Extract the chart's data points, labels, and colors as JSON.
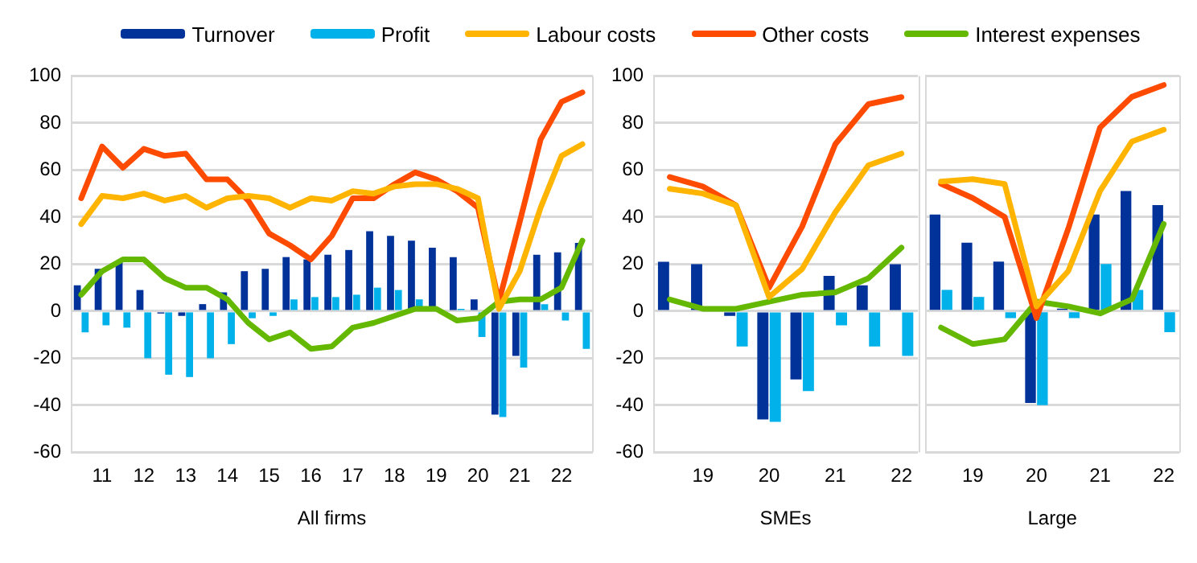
{
  "chart_data": [
    {
      "type": "bar",
      "xlabel": "All firms",
      "legend": "top",
      "grid": "y",
      "ylim": [
        -60,
        100
      ],
      "yticks": [
        -60,
        -40,
        -20,
        0,
        20,
        40,
        60,
        80,
        100
      ],
      "categories": [
        null,
        "11",
        null,
        "12",
        null,
        "13",
        null,
        "14",
        null,
        "15",
        null,
        "16",
        null,
        "17",
        null,
        "18",
        null,
        "19",
        null,
        "20",
        null,
        "21",
        null,
        "22",
        null
      ],
      "series": [
        {
          "name": "Turnover",
          "color": "#003299",
          "values": [
            11,
            18,
            21,
            9,
            -1,
            -2,
            3,
            8,
            17,
            18,
            23,
            22,
            24,
            26,
            34,
            32,
            30,
            27,
            23,
            5,
            -44,
            -19,
            24,
            25,
            29
          ]
        },
        {
          "name": "Profit",
          "color": "#00b1ea",
          "values": [
            -9,
            -6,
            -7,
            -20,
            -27,
            -28,
            -20,
            -14,
            -3,
            -2,
            5,
            6,
            6,
            7,
            10,
            9,
            5,
            null,
            1,
            -11,
            -45,
            -24,
            3,
            -4,
            -16
          ]
        },
        {
          "name": "Labour costs",
          "type": "line",
          "color": "#ffb400",
          "values": [
            37,
            49,
            48,
            50,
            47,
            49,
            44,
            48,
            49,
            48,
            44,
            48,
            47,
            51,
            50,
            53,
            54,
            54,
            52,
            48,
            1,
            17,
            44,
            66,
            71
          ]
        },
        {
          "name": "Other costs",
          "type": "line",
          "color": "#ff4b00",
          "values": [
            48,
            70,
            61,
            69,
            66,
            67,
            56,
            56,
            47,
            33,
            28,
            22,
            32,
            48,
            48,
            54,
            59,
            56,
            51,
            44,
            4,
            38,
            73,
            89,
            93
          ]
        },
        {
          "name": "Interest expenses",
          "type": "line",
          "color": "#65b800",
          "values": [
            7,
            17,
            22,
            22,
            14,
            10,
            10,
            5,
            -5,
            -12,
            -9,
            -16,
            -15,
            -7,
            -5,
            -2,
            1,
            1,
            -4,
            -3,
            4,
            5,
            5,
            10,
            30
          ]
        }
      ]
    },
    {
      "type": "bar",
      "xlabel": "SMEs",
      "grid": "y",
      "ylim": [
        -60,
        100
      ],
      "yticks": [
        -60,
        -40,
        -20,
        0,
        20,
        40,
        60,
        80,
        100
      ],
      "categories": [
        null,
        "19",
        null,
        "20",
        null,
        "21",
        null,
        "22"
      ],
      "series": [
        {
          "color": "#003299",
          "values": [
            21,
            20,
            -2,
            -46,
            -29,
            15,
            11,
            20
          ]
        },
        {
          "color": "#00b1ea",
          "values": [
            0,
            0,
            -15,
            -47,
            -34,
            -6,
            -15,
            -19
          ]
        },
        {
          "type": "line",
          "color": "#ffb400",
          "values": [
            52,
            50,
            45,
            6,
            18,
            42,
            62,
            67
          ]
        },
        {
          "type": "line",
          "color": "#ff4b00",
          "values": [
            57,
            53,
            45,
            10,
            36,
            71,
            88,
            91
          ]
        },
        {
          "type": "line",
          "color": "#65b800",
          "values": [
            5,
            1,
            1,
            4,
            7,
            8,
            14,
            27
          ]
        }
      ]
    },
    {
      "type": "bar",
      "xlabel": "Large",
      "grid": "y",
      "tick_labels": "x",
      "ylim": [
        -60,
        100
      ],
      "yticks": [
        -60,
        -40,
        -20,
        0,
        20,
        40,
        60,
        80,
        100
      ],
      "categories": [
        null,
        "19",
        null,
        "20",
        null,
        "21",
        null,
        "22"
      ],
      "series": [
        {
          "color": "#003299",
          "values": [
            41,
            29,
            21,
            -39,
            1,
            41,
            51,
            45
          ]
        },
        {
          "color": "#00b1ea",
          "values": [
            9,
            6,
            -3,
            -40,
            -3,
            20,
            9,
            -9
          ]
        },
        {
          "type": "line",
          "color": "#ffb400",
          "values": [
            55,
            56,
            54,
            2,
            17,
            51,
            72,
            77
          ]
        },
        {
          "type": "line",
          "color": "#ff4b00",
          "values": [
            54,
            48,
            40,
            -3,
            35,
            78,
            91,
            96
          ]
        },
        {
          "type": "line",
          "color": "#65b800",
          "values": [
            -7,
            -14,
            -12,
            4,
            2,
            -1,
            5,
            37
          ]
        }
      ]
    }
  ]
}
